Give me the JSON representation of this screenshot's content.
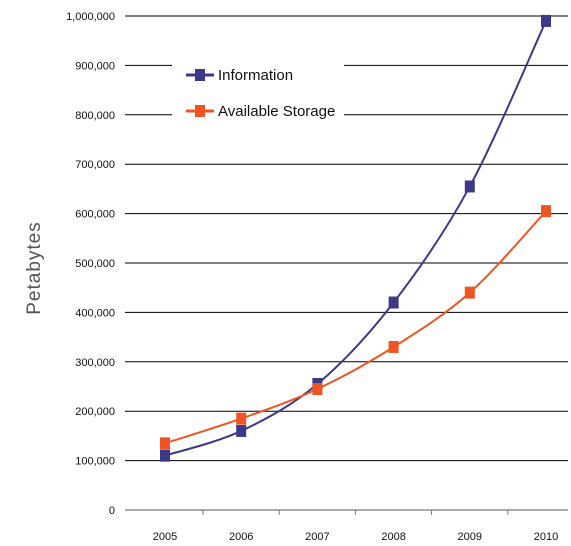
{
  "chart_data": {
    "type": "line",
    "title": "",
    "xlabel": "",
    "ylabel": "Petabytes",
    "categories": [
      "2005",
      "2006",
      "2007",
      "2008",
      "2009",
      "2010"
    ],
    "y_ticks": [
      "0",
      "100,000",
      "200,000",
      "300,000",
      "400,000",
      "500,000",
      "600,000",
      "700,000",
      "800,000",
      "900,000",
      "1,000,000"
    ],
    "ylim": [
      0,
      1000000
    ],
    "grid": "horizontal",
    "legend_position": "top-left",
    "series": [
      {
        "name": "Information",
        "color": "#3d3888",
        "values": [
          110000,
          160000,
          255000,
          420000,
          655000,
          990000
        ]
      },
      {
        "name": "Available Storage",
        "color": "#ee5522",
        "values": [
          135000,
          185000,
          245000,
          330000,
          440000,
          605000
        ]
      }
    ]
  }
}
